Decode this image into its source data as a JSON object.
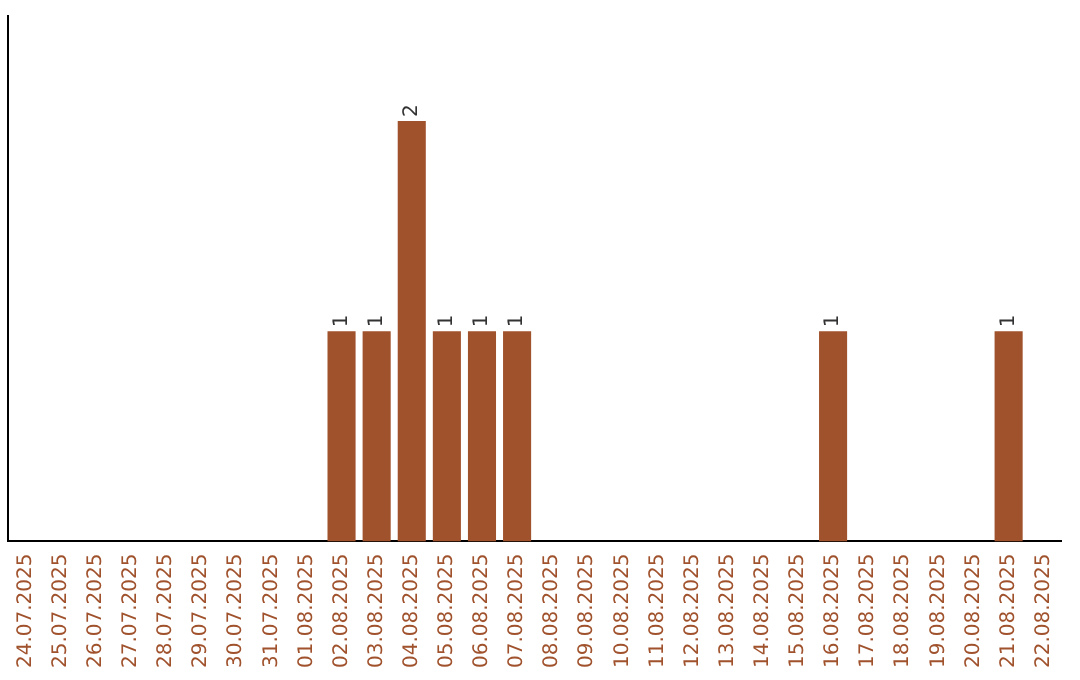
{
  "chart_data": {
    "type": "bar",
    "categories": [
      "24.07.2025",
      "25.07.2025",
      "26.07.2025",
      "27.07.2025",
      "28.07.2025",
      "29.07.2025",
      "30.07.2025",
      "31.07.2025",
      "01.08.2025",
      "02.08.2025",
      "03.08.2025",
      "04.08.2025",
      "05.08.2025",
      "06.08.2025",
      "07.08.2025",
      "08.08.2025",
      "09.08.2025",
      "10.08.2025",
      "11.08.2025",
      "12.08.2025",
      "13.08.2025",
      "14.08.2025",
      "15.08.2025",
      "16.08.2025",
      "17.08.2025",
      "18.08.2025",
      "19.08.2025",
      "20.08.2025",
      "21.08.2025",
      "22.08.2025"
    ],
    "values": [
      0,
      0,
      0,
      0,
      0,
      0,
      0,
      0,
      0,
      1,
      1,
      2,
      1,
      1,
      1,
      0,
      0,
      0,
      0,
      0,
      0,
      0,
      0,
      1,
      0,
      0,
      0,
      0,
      1,
      0
    ],
    "value_labels": [
      null,
      null,
      null,
      null,
      null,
      null,
      null,
      null,
      null,
      "1",
      "1",
      "2",
      "1",
      "1",
      "1",
      null,
      null,
      null,
      null,
      null,
      null,
      null,
      null,
      "1",
      null,
      null,
      null,
      null,
      "1",
      null
    ],
    "color": "#a0522d",
    "grid": false,
    "legend": false,
    "tick_labels": "x"
  }
}
